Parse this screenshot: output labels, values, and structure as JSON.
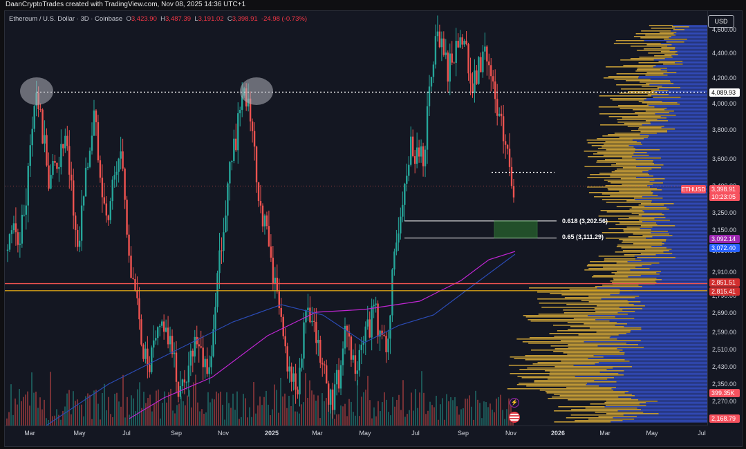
{
  "credit": "DaanCryptoTrades created with TradingView.com, Nov 08, 2025 14:36 UTC+1",
  "legend": {
    "symbol": "Ethereum / U.S. Dollar · 3D · Coinbase",
    "open_label": "O",
    "open": "3,423.90",
    "high_label": "H",
    "high": "3,487.39",
    "low_label": "L",
    "low": "3,191.02",
    "close_label": "C",
    "close": "3,398.91",
    "change": "-24.98 (-0.73%)"
  },
  "currency_button": "USD",
  "price_scale": {
    "ticks": [
      "4,600.00",
      "4,400.00",
      "4,200.00",
      "4,000.00",
      "3,800.00",
      "3,600.00",
      "3,400.00",
      "3,250.00",
      "3,150.00",
      "3,050.00",
      "2,910.00",
      "2,790.00",
      "2,690.00",
      "2,590.00",
      "2,510.00",
      "2,430.00",
      "2,350.00",
      "2,270.00"
    ],
    "badges": [
      {
        "text": "4,089.93",
        "bg": "#ffffff",
        "fg": "#000000"
      },
      {
        "text": "3,398.91",
        "bg": "#f7525f",
        "fg": "#ffffff"
      },
      {
        "text": "10:23:05",
        "bg": "#f7525f",
        "fg": "#ffffff"
      },
      {
        "text": "3,092.14",
        "bg": "#9c27b0",
        "fg": "#ffffff"
      },
      {
        "text": "3,072.40",
        "bg": "#2962ff",
        "fg": "#ffffff"
      },
      {
        "text": "2,851.51",
        "bg": "#d32f2f",
        "fg": "#ffffff"
      },
      {
        "text": "2,815.41",
        "bg": "#d32f2f",
        "fg": "#ffffff"
      },
      {
        "text": "399.35K",
        "bg": "#f7525f",
        "fg": "#ffffff"
      },
      {
        "text": "2,168.79",
        "bg": "#f7525f",
        "fg": "#ffffff"
      }
    ]
  },
  "symbol_badge": "ETHUSD",
  "fib": {
    "level1": "0.618 (3,202.56)",
    "level2": "0.65 (3,111.29)"
  },
  "time_axis": [
    "Mar",
    "May",
    "Jul",
    "Sep",
    "Nov",
    "2025",
    "Mar",
    "May",
    "Jul",
    "Sep",
    "Nov",
    "2026",
    "Mar",
    "May",
    "Jul"
  ],
  "colors": {
    "up": "#26a69a",
    "down": "#ef5350",
    "ma_magenta": "#c026d3",
    "ma_blue": "#2b4bb5",
    "vp_gold": "#e0b23a",
    "vp_blue": "#3450c8",
    "support_red": "#ef5350",
    "support_gold": "#d4a017"
  },
  "chart_data": {
    "type": "candlestick",
    "title": "Ethereum / U.S. Dollar · 3D · Coinbase",
    "last_price": 3398.91,
    "ylim": [
      2168.79,
      4620
    ],
    "horizontal_levels": [
      4089.93,
      3500,
      2851.51,
      2815.41
    ],
    "fib_levels": [
      {
        "label": "0.618",
        "value": 3202.56
      },
      {
        "label": "0.65",
        "value": 3111.29
      }
    ],
    "moving_averages": [
      {
        "label": "3,092.14",
        "value": 3092.14
      },
      {
        "label": "3,072.40",
        "value": 3072.4
      }
    ],
    "volume_last": "399.35K",
    "swing_points": [
      {
        "t": 0,
        "v": 3050
      },
      {
        "t": 8,
        "v": 3200
      },
      {
        "t": 14,
        "v": 4089
      },
      {
        "t": 20,
        "v": 3450
      },
      {
        "t": 28,
        "v": 3700
      },
      {
        "t": 34,
        "v": 3050
      },
      {
        "t": 42,
        "v": 3900
      },
      {
        "t": 48,
        "v": 3200
      },
      {
        "t": 55,
        "v": 3650
      },
      {
        "t": 60,
        "v": 2900
      },
      {
        "t": 68,
        "v": 2400
      },
      {
        "t": 76,
        "v": 2650
      },
      {
        "t": 84,
        "v": 2300
      },
      {
        "t": 92,
        "v": 2600
      },
      {
        "t": 98,
        "v": 2400
      },
      {
        "t": 104,
        "v": 3100
      },
      {
        "t": 110,
        "v": 3700
      },
      {
        "t": 116,
        "v": 4090
      },
      {
        "t": 122,
        "v": 3350
      },
      {
        "t": 128,
        "v": 3000
      },
      {
        "t": 134,
        "v": 2550
      },
      {
        "t": 140,
        "v": 2300
      },
      {
        "t": 146,
        "v": 2700
      },
      {
        "t": 152,
        "v": 2450
      },
      {
        "t": 158,
        "v": 2250
      },
      {
        "t": 164,
        "v": 2550
      },
      {
        "t": 170,
        "v": 2400
      },
      {
        "t": 178,
        "v": 2700
      },
      {
        "t": 184,
        "v": 2500
      },
      {
        "t": 190,
        "v": 3200
      },
      {
        "t": 196,
        "v": 3700
      },
      {
        "t": 202,
        "v": 3600
      },
      {
        "t": 208,
        "v": 4500
      },
      {
        "t": 214,
        "v": 4300
      },
      {
        "t": 220,
        "v": 4600
      },
      {
        "t": 226,
        "v": 4100
      },
      {
        "t": 232,
        "v": 4450
      },
      {
        "t": 238,
        "v": 3900
      },
      {
        "t": 242,
        "v": 3700
      },
      {
        "t": 246,
        "v": 3400
      }
    ]
  }
}
